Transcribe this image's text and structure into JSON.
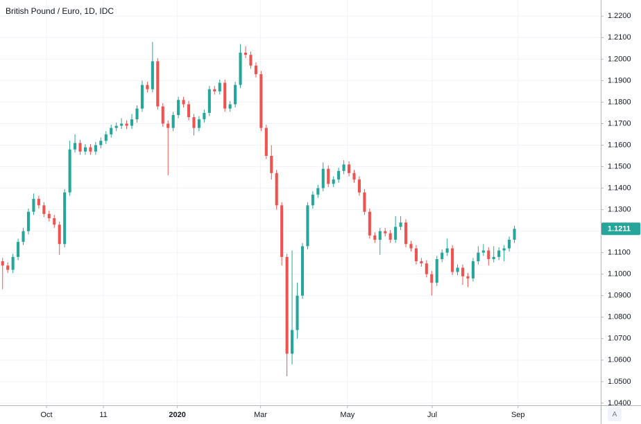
{
  "chart_data": {
    "type": "candlestick",
    "title": "British Pound / Euro, 1D, IDC",
    "up_color": "#26a69a",
    "down_color": "#ef5350",
    "grid": true,
    "x": [
      0,
      1,
      2,
      3,
      4,
      5,
      6,
      7,
      8,
      9,
      10,
      11,
      12,
      13,
      14,
      15,
      16,
      17,
      18,
      19,
      20,
      21,
      22,
      23,
      24,
      25,
      26,
      27,
      28,
      29,
      30,
      31,
      32,
      33,
      34,
      35,
      36,
      37,
      38,
      39,
      40,
      41,
      42,
      43,
      44,
      45,
      46,
      47,
      48,
      49,
      50,
      51,
      52,
      53,
      54,
      55,
      56,
      57,
      58,
      59,
      60,
      61,
      62,
      63,
      64,
      65,
      66,
      67,
      68,
      69,
      70,
      71,
      72,
      73,
      74,
      75,
      76,
      77,
      78,
      79,
      80,
      81,
      82,
      83,
      84,
      85,
      86,
      87,
      88,
      89,
      90,
      91,
      92,
      93,
      94,
      95,
      96,
      97,
      98,
      99
    ],
    "open": [
      1.106,
      1.104,
      1.102,
      1.108,
      1.115,
      1.12,
      1.129,
      1.135,
      1.132,
      1.128,
      1.126,
      1.123,
      1.114,
      1.138,
      1.158,
      1.161,
      1.157,
      1.159,
      1.157,
      1.16,
      1.162,
      1.165,
      1.168,
      1.169,
      1.17,
      1.169,
      1.172,
      1.177,
      1.188,
      1.186,
      1.199,
      1.178,
      1.17,
      1.168,
      1.174,
      1.181,
      1.179,
      1.173,
      1.168,
      1.172,
      1.175,
      1.186,
      1.185,
      1.189,
      1.177,
      1.179,
      1.188,
      1.203,
      1.202,
      1.197,
      1.193,
      1.168,
      1.155,
      1.147,
      1.132,
      1.108,
      1.063,
      1.074,
      1.09,
      1.113,
      1.132,
      1.137,
      1.14,
      1.149,
      1.142,
      1.144,
      1.148,
      1.151,
      1.147,
      1.144,
      1.138,
      1.129,
      1.118,
      1.116,
      1.12,
      1.119,
      1.116,
      1.122,
      1.124,
      1.114,
      1.112,
      1.106,
      1.105,
      1.1,
      1.096,
      1.107,
      1.11,
      1.112,
      1.101,
      1.103,
      1.099,
      1.098,
      1.106,
      1.11,
      1.111,
      1.107,
      1.108,
      1.111,
      1.112,
      1.116
    ],
    "high": [
      1.1075,
      1.1055,
      1.1095,
      1.1165,
      1.1215,
      1.1305,
      1.1375,
      1.1365,
      1.1335,
      1.1295,
      1.1275,
      1.1245,
      1.1395,
      1.162,
      1.165,
      1.1625,
      1.1605,
      1.1605,
      1.1615,
      1.1635,
      1.1665,
      1.1695,
      1.1705,
      1.1725,
      1.1715,
      1.1745,
      1.1785,
      1.19,
      1.1895,
      1.208,
      1.2005,
      1.1795,
      1.1715,
      1.1755,
      1.1825,
      1.1825,
      1.1805,
      1.1745,
      1.1735,
      1.1765,
      1.1875,
      1.1875,
      1.1905,
      1.1905,
      1.1805,
      1.1895,
      1.207,
      1.206,
      1.2035,
      1.1985,
      1.1945,
      1.1695,
      1.16,
      1.1485,
      1.1335,
      1.1095,
      1.111,
      1.096,
      1.1145,
      1.1335,
      1.1385,
      1.1415,
      1.152,
      1.1505,
      1.1455,
      1.1495,
      1.153,
      1.1525,
      1.1485,
      1.1455,
      1.1395,
      1.1305,
      1.1195,
      1.1215,
      1.1215,
      1.1205,
      1.127,
      1.127,
      1.1255,
      1.1155,
      1.1135,
      1.1075,
      1.1065,
      1.1015,
      1.1085,
      1.1115,
      1.1165,
      1.1135,
      1.1045,
      1.1045,
      1.1005,
      1.1075,
      1.113,
      1.114,
      1.1125,
      1.113,
      1.1125,
      1.1135,
      1.1175,
      1.1225
    ],
    "low": [
      1.093,
      1.1005,
      1.1005,
      1.1065,
      1.1135,
      1.1185,
      1.1275,
      1.1305,
      1.1265,
      1.1245,
      1.1215,
      1.109,
      1.1125,
      1.1365,
      1.1565,
      1.1555,
      1.1555,
      1.1555,
      1.1555,
      1.1585,
      1.1605,
      1.1635,
      1.1665,
      1.1675,
      1.1675,
      1.1675,
      1.1705,
      1.1755,
      1.1845,
      1.1845,
      1.1765,
      1.1685,
      1.146,
      1.1665,
      1.1725,
      1.1775,
      1.1715,
      1.1645,
      1.1665,
      1.1705,
      1.1735,
      1.1835,
      1.1835,
      1.1755,
      1.1755,
      1.1775,
      1.1865,
      1.2005,
      1.1955,
      1.1915,
      1.1665,
      1.1535,
      1.144,
      1.13,
      1.104,
      1.0525,
      1.058,
      1.07,
      1.0885,
      1.1115,
      1.1305,
      1.1355,
      1.1385,
      1.1405,
      1.1405,
      1.1425,
      1.1465,
      1.1455,
      1.1425,
      1.1365,
      1.1275,
      1.1165,
      1.1145,
      1.109,
      1.1175,
      1.1145,
      1.1145,
      1.1205,
      1.1125,
      1.1105,
      1.1045,
      1.1035,
      1.0985,
      1.09,
      1.0945,
      1.1055,
      1.1085,
      1.0995,
      1.0995,
      1.095,
      1.094,
      1.0965,
      1.1045,
      1.1085,
      1.104,
      1.1055,
      1.1065,
      1.106,
      1.1105,
      1.1145
    ],
    "close": [
      1.104,
      1.102,
      1.108,
      1.115,
      1.12,
      1.129,
      1.135,
      1.132,
      1.128,
      1.126,
      1.123,
      1.114,
      1.138,
      1.158,
      1.161,
      1.157,
      1.159,
      1.157,
      1.16,
      1.162,
      1.165,
      1.168,
      1.169,
      1.17,
      1.169,
      1.172,
      1.177,
      1.188,
      1.186,
      1.199,
      1.178,
      1.17,
      1.168,
      1.174,
      1.181,
      1.179,
      1.173,
      1.168,
      1.172,
      1.175,
      1.186,
      1.185,
      1.189,
      1.177,
      1.179,
      1.188,
      1.203,
      1.202,
      1.197,
      1.193,
      1.168,
      1.155,
      1.147,
      1.132,
      1.108,
      1.063,
      1.074,
      1.09,
      1.113,
      1.132,
      1.137,
      1.14,
      1.149,
      1.142,
      1.144,
      1.148,
      1.151,
      1.147,
      1.144,
      1.138,
      1.129,
      1.118,
      1.116,
      1.12,
      1.119,
      1.116,
      1.122,
      1.124,
      1.114,
      1.112,
      1.106,
      1.105,
      1.1,
      1.096,
      1.107,
      1.11,
      1.112,
      1.101,
      1.103,
      1.099,
      1.098,
      1.106,
      1.11,
      1.111,
      1.107,
      1.108,
      1.111,
      1.112,
      1.116,
      1.1211
    ],
    "last_price_label": "1.1211",
    "xlim": [
      -0.5,
      115.7
    ],
    "xticks": [
      {
        "value": 8.5,
        "label": "Oct"
      },
      {
        "value": 19.5,
        "label": "11"
      },
      {
        "value": 33.8,
        "label": "2020"
      },
      {
        "value": 49.9,
        "label": "Mar"
      },
      {
        "value": 66.7,
        "label": "May"
      },
      {
        "value": 83.1,
        "label": "Jul"
      },
      {
        "value": 99.7,
        "label": "Sep"
      }
    ],
    "ylim": [
      1.039,
      1.2275
    ],
    "yticks": [
      {
        "value": 1.04,
        "label": "1.0400"
      },
      {
        "value": 1.05,
        "label": "1.0500"
      },
      {
        "value": 1.06,
        "label": "1.0600"
      },
      {
        "value": 1.07,
        "label": "1.0700"
      },
      {
        "value": 1.08,
        "label": "1.0800"
      },
      {
        "value": 1.09,
        "label": "1.0900"
      },
      {
        "value": 1.1,
        "label": "1.1000"
      },
      {
        "value": 1.11,
        "label": "1.1100"
      },
      {
        "value": 1.12,
        "label": "1.1200"
      },
      {
        "value": 1.13,
        "label": "1.1300"
      },
      {
        "value": 1.14,
        "label": "1.1400"
      },
      {
        "value": 1.15,
        "label": "1.1500"
      },
      {
        "value": 1.16,
        "label": "1.1600"
      },
      {
        "value": 1.17,
        "label": "1.1700"
      },
      {
        "value": 1.18,
        "label": "1.1800"
      },
      {
        "value": 1.19,
        "label": "1.1900"
      },
      {
        "value": 1.2,
        "label": "1.2000"
      },
      {
        "value": 1.21,
        "label": "1.2100"
      },
      {
        "value": 1.22,
        "label": "1.2200"
      }
    ],
    "auto_scale_button": "A"
  }
}
